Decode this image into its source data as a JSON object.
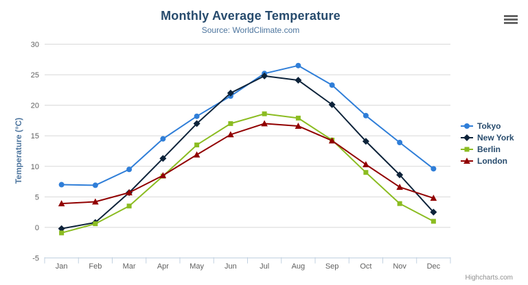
{
  "header": {
    "title": "Monthly Average Temperature",
    "subtitle": "Source: WorldClimate.com"
  },
  "chart_data": {
    "type": "line",
    "title": "Monthly Average Temperature",
    "subtitle": "Source: WorldClimate.com",
    "categories": [
      "Jan",
      "Feb",
      "Mar",
      "Apr",
      "May",
      "Jun",
      "Jul",
      "Aug",
      "Sep",
      "Oct",
      "Nov",
      "Dec"
    ],
    "series": [
      {
        "name": "Tokyo",
        "color": "#2f7ed8",
        "marker": "circle",
        "values": [
          7.0,
          6.9,
          9.5,
          14.5,
          18.2,
          21.5,
          25.2,
          26.5,
          23.3,
          18.3,
          13.9,
          9.6
        ]
      },
      {
        "name": "New York",
        "color": "#0d233a",
        "marker": "diamond",
        "values": [
          -0.2,
          0.8,
          5.7,
          11.3,
          17.0,
          22.0,
          24.8,
          24.1,
          20.1,
          14.1,
          8.6,
          2.5
        ]
      },
      {
        "name": "Berlin",
        "color": "#8bbc21",
        "marker": "square",
        "values": [
          -0.9,
          0.6,
          3.5,
          8.4,
          13.5,
          17.0,
          18.6,
          17.9,
          14.3,
          9.0,
          3.9,
          1.0
        ]
      },
      {
        "name": "London",
        "color": "#910000",
        "marker": "triangle",
        "values": [
          3.9,
          4.2,
          5.7,
          8.5,
          11.9,
          15.2,
          17.0,
          16.6,
          14.2,
          10.3,
          6.6,
          4.8
        ]
      }
    ],
    "xlabel": "",
    "ylabel": "Temperature (°C)",
    "ylim": [
      -5,
      30
    ],
    "ytick_step": 5,
    "grid": true,
    "legend_position": "right"
  },
  "credits": {
    "label": "Highcharts.com"
  },
  "icons": {
    "export_menu": "hamburger-icon"
  },
  "colors": {
    "title": "#274b6d",
    "subtitle": "#4d759e",
    "axis_title": "#4d759e",
    "tick_label": "#606060",
    "grid_line": "#d8d8d8",
    "axis_line": "#c0d0e0",
    "legend_text": "#274b6d",
    "credits_text": "#909090"
  }
}
